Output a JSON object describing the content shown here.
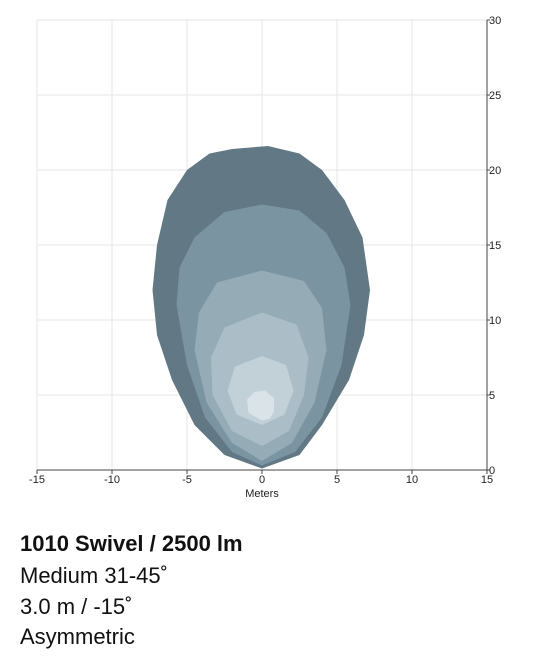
{
  "chart_data": {
    "type": "contour",
    "x_label": "Meters",
    "xlim": [
      -15,
      15
    ],
    "xticks": [
      -15,
      -10,
      -5,
      0,
      5,
      10,
      15
    ],
    "ylim": [
      0,
      30
    ],
    "yticks": [
      0,
      5,
      10,
      15,
      20,
      25,
      30
    ],
    "grid": true,
    "series": [
      {
        "color": "#627985",
        "x": [
          0,
          -2.5,
          -4.5,
          -6,
          -7,
          -7.3,
          -7,
          -6.3,
          -5,
          -3.5,
          -2,
          0.4,
          2.5,
          4,
          5.5,
          6.7,
          7.2,
          6.8,
          5.8,
          4,
          2.5
        ],
        "values": [
          0.1,
          1,
          3,
          6,
          9,
          12,
          15,
          18,
          20,
          21.1,
          21.4,
          21.6,
          21.1,
          20,
          18,
          15.5,
          12,
          9,
          6,
          3,
          1
        ]
      },
      {
        "color": "#7a94a1",
        "x": [
          0,
          -2,
          -3.8,
          -5,
          -5.7,
          -5.5,
          -4.5,
          -2.5,
          0,
          2.5,
          4.3,
          5.5,
          5.9,
          5.3,
          4,
          2.2
        ],
        "values": [
          0.3,
          1.2,
          3.5,
          7,
          11,
          13.5,
          15.5,
          17.2,
          17.7,
          17.3,
          15.8,
          13.5,
          11,
          7,
          3.5,
          1.2
        ]
      },
      {
        "color": "#95abb6",
        "x": [
          0,
          -2,
          -3.7,
          -4.5,
          -4.2,
          -3,
          0,
          2.8,
          4,
          4.3,
          3.5,
          2
        ],
        "values": [
          0.6,
          1.8,
          4.5,
          8,
          10.5,
          12.5,
          13.3,
          12.6,
          10.8,
          8,
          4.5,
          1.8
        ]
      },
      {
        "color": "#abbec8",
        "x": [
          0,
          -2,
          -3.3,
          -3.4,
          -2.5,
          0,
          2.3,
          3.1,
          2.8,
          1.8
        ],
        "values": [
          1.6,
          2.6,
          5,
          7.5,
          9.5,
          10.5,
          9.7,
          7.5,
          5,
          2.6
        ]
      },
      {
        "color": "#c2d0d7",
        "x": [
          0,
          -1.7,
          -2.3,
          -1.8,
          0,
          1.6,
          2.1,
          1.5
        ],
        "values": [
          3,
          3.7,
          5.3,
          6.9,
          7.6,
          7,
          5.3,
          3.7
        ]
      },
      {
        "color": "#dae3e7",
        "x": [
          0,
          -0.9,
          -1,
          -0.5,
          0.2,
          0.8,
          0.8,
          0.5
        ],
        "values": [
          3.3,
          3.8,
          4.7,
          5.2,
          5.3,
          4.8,
          3.9,
          3.4
        ]
      }
    ]
  },
  "captions": {
    "title": "1010 Swivel / 2500 lm",
    "lines": [
      "Medium 31-45˚",
      "3.0 m / -15˚",
      "Asymmetric"
    ]
  }
}
